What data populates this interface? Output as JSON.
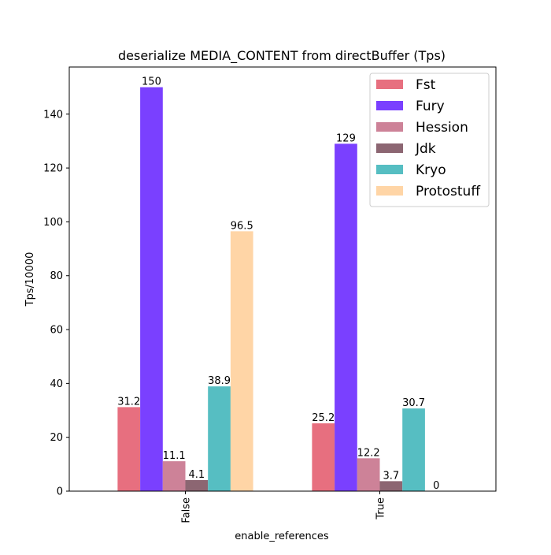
{
  "chart_data": {
    "type": "bar",
    "title": "deserialize MEDIA_CONTENT from directBuffer (Tps)",
    "xlabel": "enable_references",
    "ylabel": "Tps/10000",
    "categories": [
      "False",
      "True"
    ],
    "ylim": [
      0,
      157.5
    ],
    "yticks": [
      0,
      20,
      40,
      60,
      80,
      100,
      120,
      140
    ],
    "grid": false,
    "legend_position": "top-right",
    "series": [
      {
        "name": "Fst",
        "color": "#e76f7f",
        "values": [
          31.2,
          25.2
        ],
        "labels": [
          "31.2",
          "25.2"
        ]
      },
      {
        "name": "Fury",
        "color": "#7a40ff",
        "values": [
          150,
          129
        ],
        "labels": [
          "150",
          "129"
        ]
      },
      {
        "name": "Hession",
        "color": "#cd8298",
        "values": [
          11.1,
          12.2
        ],
        "labels": [
          "11.1",
          "12.2"
        ]
      },
      {
        "name": "Jdk",
        "color": "#8c6672",
        "values": [
          4.1,
          3.7
        ],
        "labels": [
          "4.1",
          "3.7"
        ]
      },
      {
        "name": "Kryo",
        "color": "#56bec2",
        "values": [
          38.9,
          30.7
        ],
        "labels": [
          "38.9",
          "30.7"
        ]
      },
      {
        "name": "Protostuff",
        "color": "#ffd5a6",
        "values": [
          96.5,
          0
        ],
        "labels": [
          "96.5",
          "0"
        ]
      }
    ]
  }
}
